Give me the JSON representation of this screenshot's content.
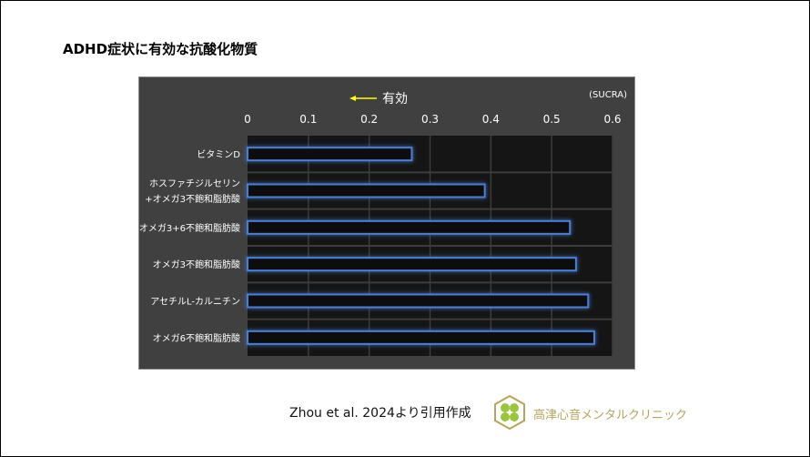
{
  "title": "ADHD症状に有効な抗酸化物質",
  "chart_data": {
    "type": "bar",
    "orientation": "horizontal",
    "categories": [
      "ビタミンD",
      "ホスファチジルセリン\n+オメガ3不飽和脂肪酸",
      "オメガ3+6不飽和脂肪酸",
      "オメガ3不飽和脂肪酸",
      "アセチルL-カルニチン",
      "オメガ6不飽和脂肪酸"
    ],
    "values": [
      0.27,
      0.39,
      0.53,
      0.54,
      0.56,
      0.57
    ],
    "xlim": [
      0,
      0.6
    ],
    "ticks": [
      "0",
      "0.1",
      "0.2",
      "0.3",
      "0.4",
      "0.5",
      "0.6"
    ],
    "axis_position": "top",
    "unit_label": "(SUCRA)",
    "annotation": "有効",
    "annotation_arrow": "left",
    "grid": true,
    "colors": {
      "bar_outline": "#4a7fd6",
      "plot_bg": "#151515",
      "panel_bg": "#404040",
      "arrow": "#ffff00"
    }
  },
  "citation": "Zhou et al. 2024より引用作成",
  "clinic_name": "高津心音メンタルクリニック",
  "logo_icon": "clover-hexagon-logo"
}
